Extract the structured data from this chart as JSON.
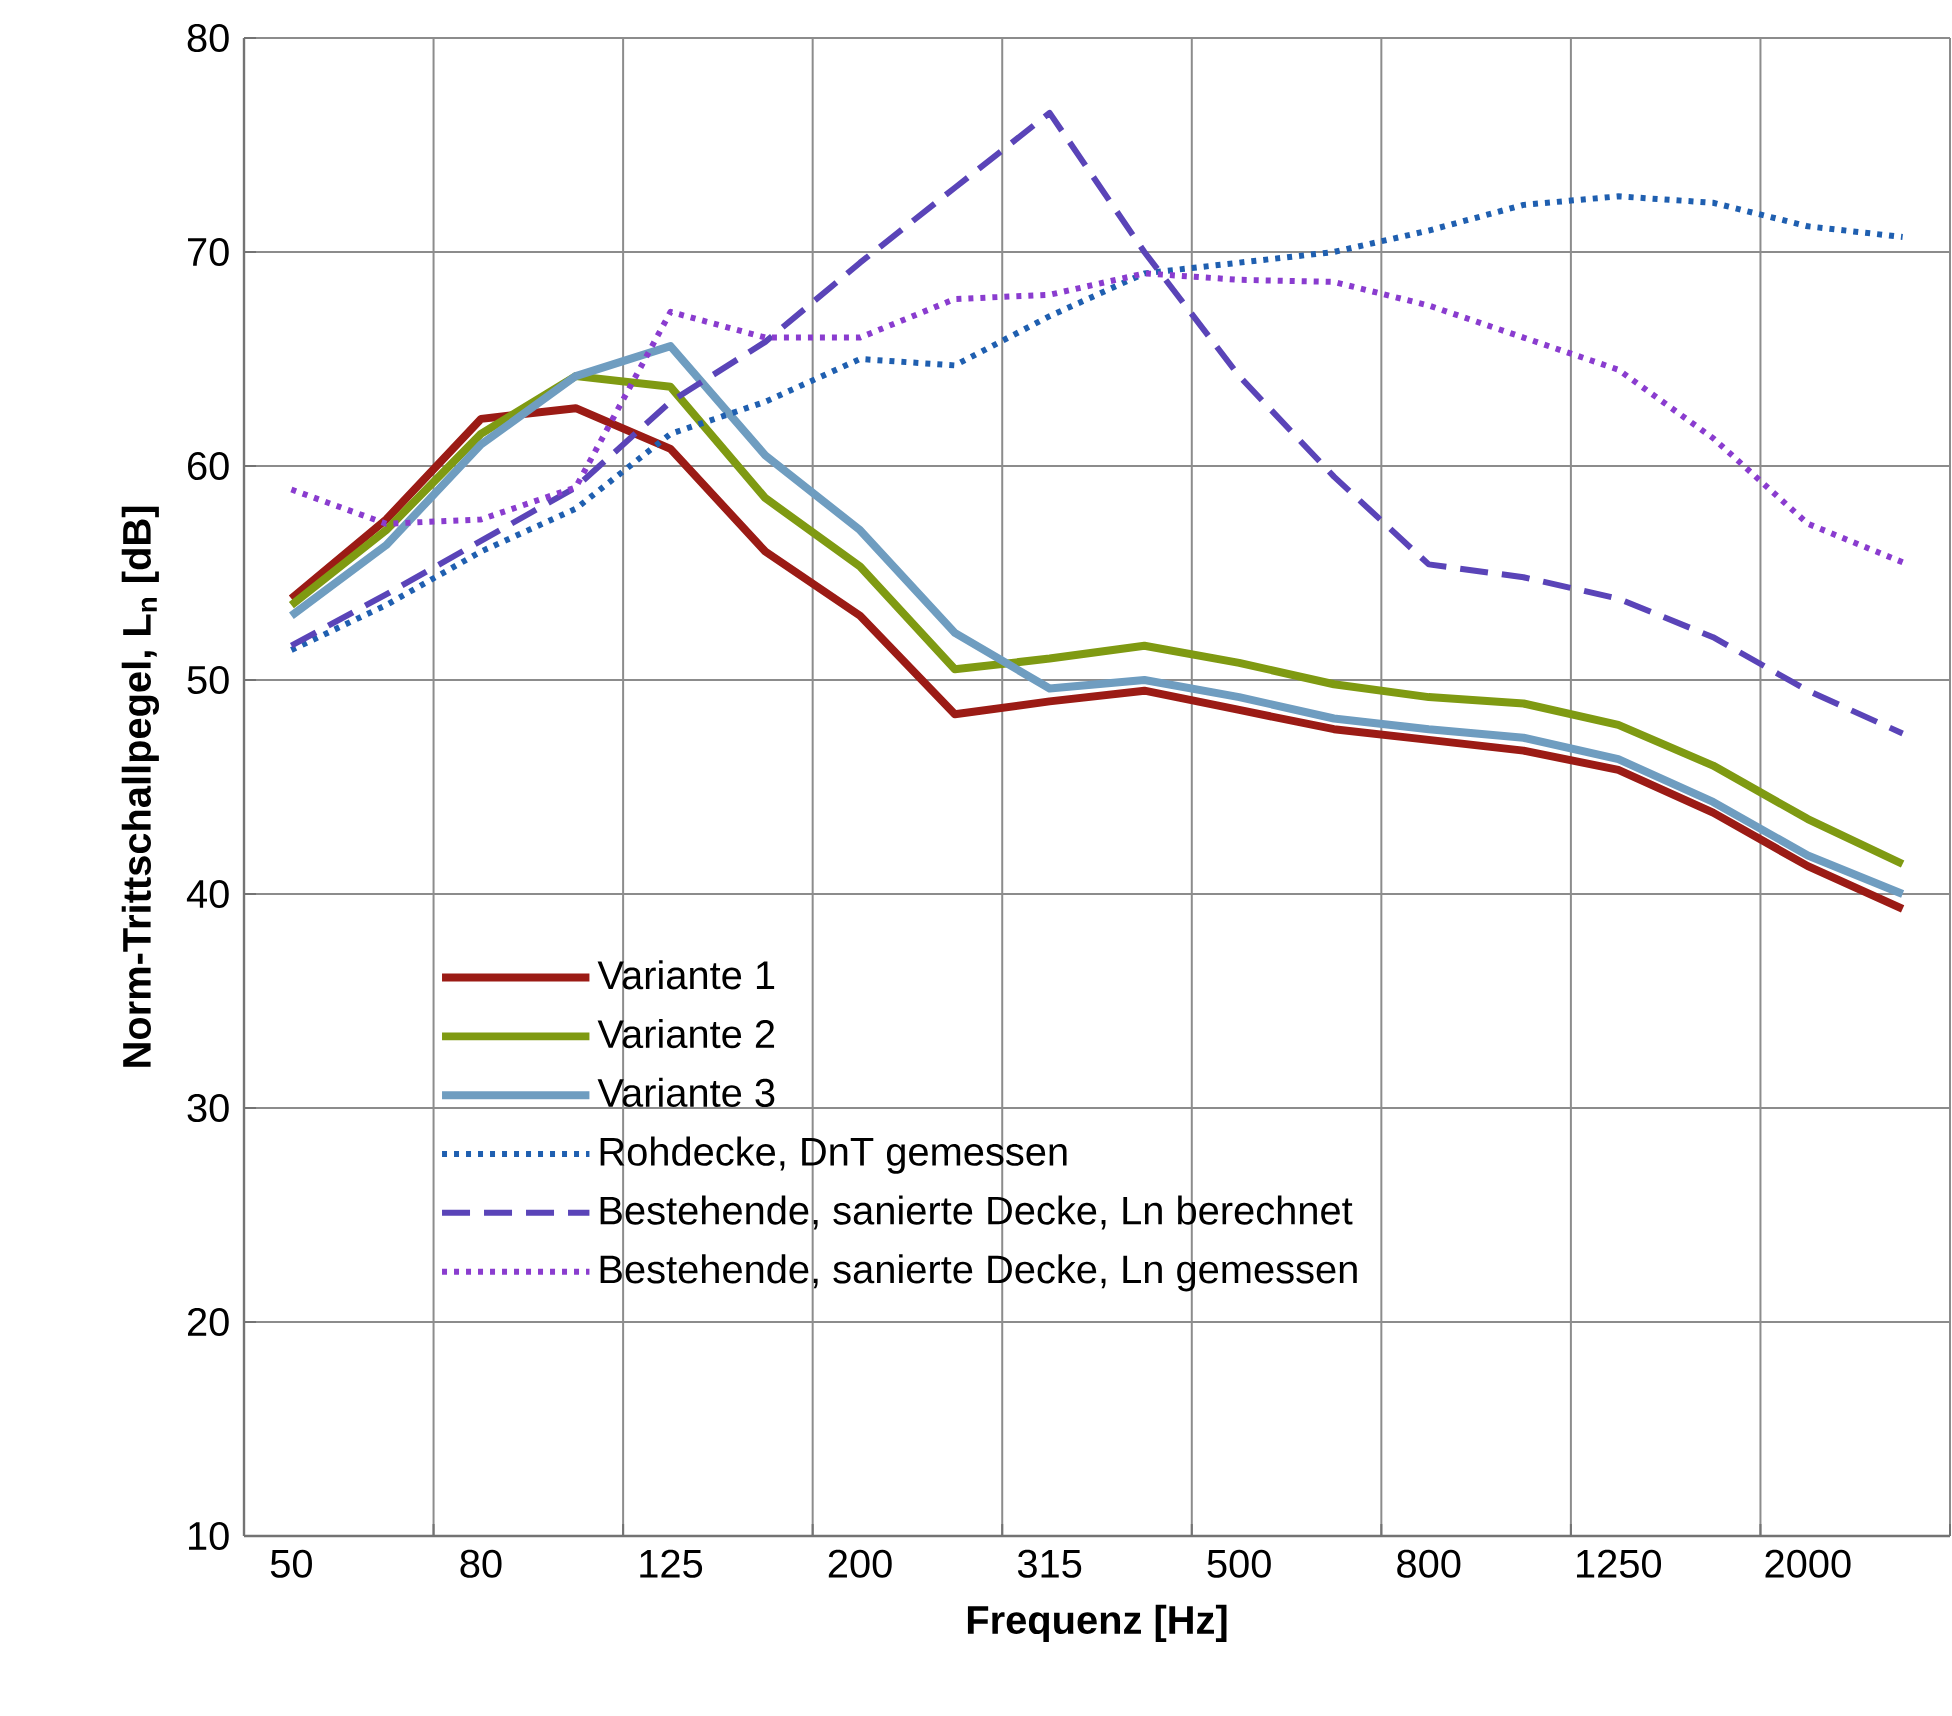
{
  "chart_data": {
    "type": "line",
    "xlabel": "Frequenz [Hz]",
    "ylabel": "Norm-Trittschallpegel, L$_{n}$ [dB]",
    "categories": [
      "50",
      null,
      "80",
      null,
      "125",
      null,
      "200",
      null,
      "315",
      null,
      "500",
      null,
      "800",
      null,
      "1250",
      null,
      "2000",
      null
    ],
    "ylim": [
      10,
      80
    ],
    "yticks": [
      10,
      20,
      30,
      40,
      50,
      60,
      70,
      80
    ],
    "grid": true,
    "legend": "bottom left",
    "marker": "none",
    "series": [
      {
        "name": "Variante 1",
        "color": "#9b1b15",
        "line_style": "solid",
        "values": [
          53.8,
          57.5,
          62.2,
          62.7,
          60.8,
          56,
          53,
          48.4,
          49,
          49.5,
          48.6,
          47.7,
          47.2,
          46.7,
          45.8,
          43.8,
          41.3,
          39.3
        ]
      },
      {
        "name": "Variante 2",
        "color": "#7f9a12",
        "line_style": "solid",
        "values": [
          53.5,
          57,
          61.5,
          64.2,
          63.7,
          58.5,
          55.3,
          50.5,
          51,
          51.6,
          50.8,
          49.8,
          49.2,
          48.9,
          47.9,
          46,
          43.5,
          41.4
        ]
      },
      {
        "name": "Variante 3",
        "color": "#6f9dc0",
        "line_style": "solid",
        "values": [
          53,
          56.3,
          61,
          64.2,
          65.6,
          60.5,
          57,
          52.2,
          49.6,
          50,
          49.2,
          48.2,
          47.7,
          47.3,
          46.3,
          44.3,
          41.8,
          40
        ]
      },
      {
        "name": "Rohdecke, DnT gemessen",
        "color": "#1f5fb0",
        "line_style": "dotted",
        "values": [
          51.4,
          53.5,
          56,
          58,
          61.5,
          63,
          65,
          64.7,
          67,
          69,
          69.5,
          70,
          71,
          72.2,
          72.6,
          72.3,
          71.2,
          70.7
        ]
      },
      {
        "name": "Bestehende, sanierte Decke, Ln berechnet",
        "color": "#5a44b8",
        "line_style": "dashed",
        "values": [
          51.6,
          54,
          56.5,
          59,
          63,
          65.8,
          69.5,
          73,
          76.5,
          70,
          64.2,
          59.5,
          55.4,
          54.8,
          53.8,
          52,
          49.5,
          47.5
        ]
      },
      {
        "name": "Bestehende, sanierte Decke, Ln gemessen",
        "color": "#8a3ccf",
        "line_style": "dotted",
        "values": [
          58.9,
          57.3,
          57.5,
          59,
          67.2,
          66,
          66,
          67.8,
          68,
          69,
          68.7,
          68.6,
          67.5,
          66,
          64.5,
          61.3,
          57.3,
          55.5
        ]
      }
    ]
  }
}
